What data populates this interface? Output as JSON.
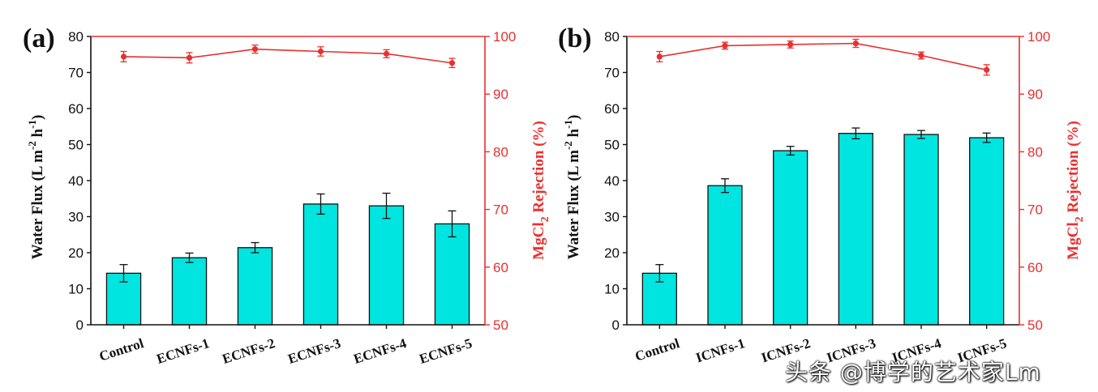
{
  "watermark": "头条 @博学的艺术家Lm",
  "colors": {
    "bar": "#00e5e0",
    "bar_stroke": "#111111",
    "rejection": "#e83030",
    "axis": "#111111"
  },
  "chart_data": [
    {
      "panel_label": "(a)",
      "type": "bar",
      "categories": [
        "Control",
        "ECNFs-1",
        "ECNFs-2",
        "ECNFs-3",
        "ECNFs-4",
        "ECNFs-5"
      ],
      "series": [
        {
          "name": "Water Flux",
          "axis": "left",
          "type": "bar",
          "values": [
            14.3,
            18.6,
            21.4,
            33.5,
            33.0,
            28.0
          ],
          "errors": [
            2.4,
            1.3,
            1.4,
            2.8,
            3.5,
            3.6
          ]
        },
        {
          "name": "MgCl2 Rejection",
          "axis": "right",
          "type": "line",
          "values": [
            96.5,
            96.3,
            97.8,
            97.4,
            97.0,
            95.4
          ],
          "errors": [
            0.9,
            0.9,
            0.7,
            0.8,
            0.7,
            0.8
          ]
        }
      ],
      "ylabel_left": "Water Flux (L m-2 h-1)",
      "ylabel_right": "MgCl2 Rejection (%)",
      "ylim_left": [
        0,
        80
      ],
      "yticks_left": [
        "0",
        "10",
        "20",
        "30",
        "40",
        "50",
        "60",
        "70",
        "80"
      ],
      "ylim_right": [
        50,
        100
      ],
      "yticks_right": [
        "50",
        "60",
        "70",
        "80",
        "90",
        "100"
      ]
    },
    {
      "panel_label": "(b)",
      "type": "bar",
      "categories": [
        "Control",
        "ICNFs-1",
        "ICNFs-2",
        "ICNFs-3",
        "ICNFs-4",
        "ICNFs-5"
      ],
      "series": [
        {
          "name": "Water Flux",
          "axis": "left",
          "type": "bar",
          "values": [
            14.3,
            38.6,
            48.3,
            53.1,
            52.8,
            51.9
          ],
          "errors": [
            2.4,
            1.9,
            1.2,
            1.5,
            1.1,
            1.3
          ]
        },
        {
          "name": "MgCl2 Rejection",
          "axis": "right",
          "type": "line",
          "values": [
            96.5,
            98.4,
            98.6,
            98.8,
            96.7,
            94.2
          ],
          "errors": [
            0.9,
            0.6,
            0.6,
            0.7,
            0.6,
            0.9
          ]
        }
      ],
      "ylabel_left": "Water Flux (L m-2 h-1)",
      "ylabel_right": "MgCl2 Rejection (%)",
      "ylim_left": [
        0,
        80
      ],
      "yticks_left": [
        "0",
        "10",
        "20",
        "30",
        "40",
        "50",
        "60",
        "70",
        "80"
      ],
      "ylim_right": [
        50,
        100
      ],
      "yticks_right": [
        "50",
        "60",
        "70",
        "80",
        "90",
        "100"
      ]
    }
  ]
}
